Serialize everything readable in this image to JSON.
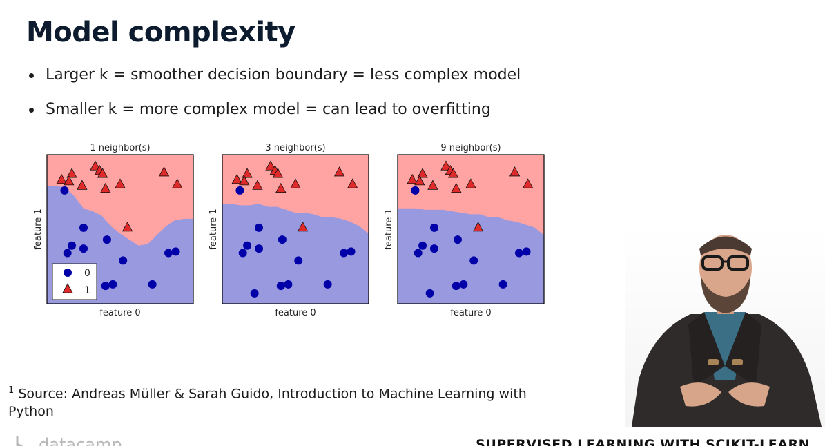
{
  "slide": {
    "title": "Model complexity",
    "bullets": [
      "Larger k = smoother decision boundary = less complex model",
      "Smaller k = more complex model = can lead to overfitting"
    ],
    "footnote_marker": "1",
    "footnote_line1": "Source: Andreas Müller & Sarah Guido, Introduction to Machine Learning with",
    "footnote_line2": "Python"
  },
  "footer": {
    "brand": "datacamp",
    "course": "SUPERVISED LEARNING WITH SCIKIT-LEARN"
  },
  "colors": {
    "class0_region": "#9999e0",
    "class1_region": "#ffa3a3",
    "class0_marker": "#0000a8",
    "class1_marker": "#e02a2a"
  },
  "chart_data": [
    {
      "type": "scatter",
      "title": "1 neighbor(s)",
      "xlabel": "feature 0",
      "ylabel": "feature 1",
      "legend": {
        "position": "lower-left",
        "entries": [
          "0",
          "1"
        ]
      },
      "series": [
        {
          "name": "0",
          "marker": "circle",
          "x": [
            0.12,
            0.25,
            0.17,
            0.25,
            0.41,
            0.14,
            0.52,
            0.83,
            0.45,
            0.4,
            0.22,
            0.72,
            0.88
          ],
          "y": [
            0.76,
            0.51,
            0.39,
            0.37,
            0.43,
            0.34,
            0.29,
            0.34,
            0.13,
            0.12,
            0.07,
            0.13,
            0.35
          ]
        },
        {
          "name": "1",
          "marker": "triangle",
          "x": [
            0.1,
            0.17,
            0.15,
            0.33,
            0.36,
            0.38,
            0.24,
            0.4,
            0.5,
            0.8,
            0.89,
            0.55
          ],
          "y": [
            0.83,
            0.87,
            0.82,
            0.92,
            0.89,
            0.87,
            0.79,
            0.77,
            0.8,
            0.88,
            0.8,
            0.51
          ]
        }
      ],
      "boundary_y": [
        0.79,
        0.79,
        0.78,
        0.72,
        0.64,
        0.62,
        0.59,
        0.52,
        0.47,
        0.43,
        0.39,
        0.4,
        0.46,
        0.52,
        0.56,
        0.57,
        0.57
      ]
    },
    {
      "type": "scatter",
      "title": "3 neighbor(s)",
      "xlabel": "feature 0",
      "ylabel": "feature 1",
      "series": [
        {
          "name": "0",
          "marker": "circle",
          "x": [
            0.12,
            0.25,
            0.17,
            0.25,
            0.41,
            0.14,
            0.52,
            0.83,
            0.45,
            0.4,
            0.22,
            0.72,
            0.88
          ],
          "y": [
            0.76,
            0.51,
            0.39,
            0.37,
            0.43,
            0.34,
            0.29,
            0.34,
            0.13,
            0.12,
            0.07,
            0.13,
            0.35
          ]
        },
        {
          "name": "1",
          "marker": "triangle",
          "x": [
            0.1,
            0.17,
            0.15,
            0.33,
            0.36,
            0.38,
            0.24,
            0.4,
            0.5,
            0.8,
            0.89,
            0.55
          ],
          "y": [
            0.83,
            0.87,
            0.82,
            0.92,
            0.89,
            0.87,
            0.79,
            0.77,
            0.8,
            0.88,
            0.8,
            0.51
          ]
        }
      ],
      "boundary_y": [
        0.67,
        0.67,
        0.66,
        0.66,
        0.67,
        0.65,
        0.65,
        0.63,
        0.61,
        0.61,
        0.6,
        0.58,
        0.58,
        0.57,
        0.55,
        0.52,
        0.47
      ]
    },
    {
      "type": "scatter",
      "title": "9 neighbor(s)",
      "xlabel": "feature 0",
      "ylabel": "feature 1",
      "series": [
        {
          "name": "0",
          "marker": "circle",
          "x": [
            0.12,
            0.25,
            0.17,
            0.25,
            0.41,
            0.14,
            0.52,
            0.83,
            0.45,
            0.4,
            0.22,
            0.72,
            0.88
          ],
          "y": [
            0.76,
            0.51,
            0.39,
            0.37,
            0.43,
            0.34,
            0.29,
            0.34,
            0.13,
            0.12,
            0.07,
            0.13,
            0.35
          ]
        },
        {
          "name": "1",
          "marker": "triangle",
          "x": [
            0.1,
            0.17,
            0.15,
            0.33,
            0.36,
            0.38,
            0.24,
            0.4,
            0.5,
            0.8,
            0.89,
            0.55
          ],
          "y": [
            0.83,
            0.87,
            0.82,
            0.92,
            0.89,
            0.87,
            0.79,
            0.77,
            0.8,
            0.88,
            0.8,
            0.51
          ]
        }
      ],
      "boundary_y": [
        0.64,
        0.64,
        0.64,
        0.63,
        0.63,
        0.63,
        0.62,
        0.61,
        0.6,
        0.6,
        0.58,
        0.58,
        0.56,
        0.55,
        0.53,
        0.51,
        0.46
      ]
    }
  ]
}
